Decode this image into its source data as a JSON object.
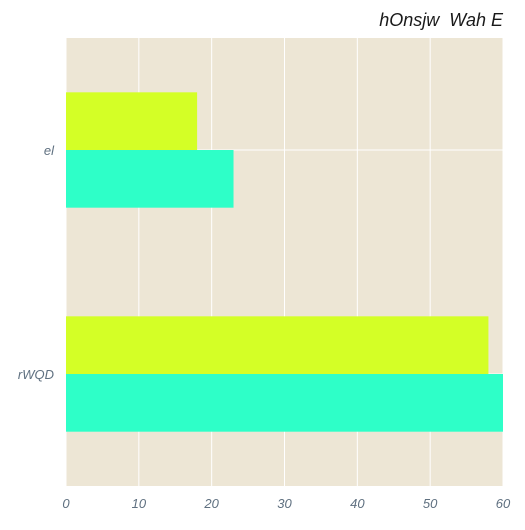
{
  "chart_data": {
    "type": "bar",
    "orientation": "horizontal",
    "title": "hOnsjw  Wah E",
    "xlabel": "",
    "ylabel": "",
    "categories": [
      "el",
      "rWQD"
    ],
    "series": [
      {
        "values": [
          18,
          58
        ],
        "color": "#d4ff26"
      },
      {
        "values": [
          23,
          60
        ],
        "color": "#2effc8"
      }
    ],
    "xlim": [
      0,
      60
    ],
    "xticks": [
      0,
      10,
      20,
      30,
      40,
      50,
      60
    ],
    "grid": true,
    "legend": "none",
    "colors": {
      "background": "#ede6d5",
      "grid": "#ffffff",
      "tick_label": "#5f7080"
    }
  }
}
